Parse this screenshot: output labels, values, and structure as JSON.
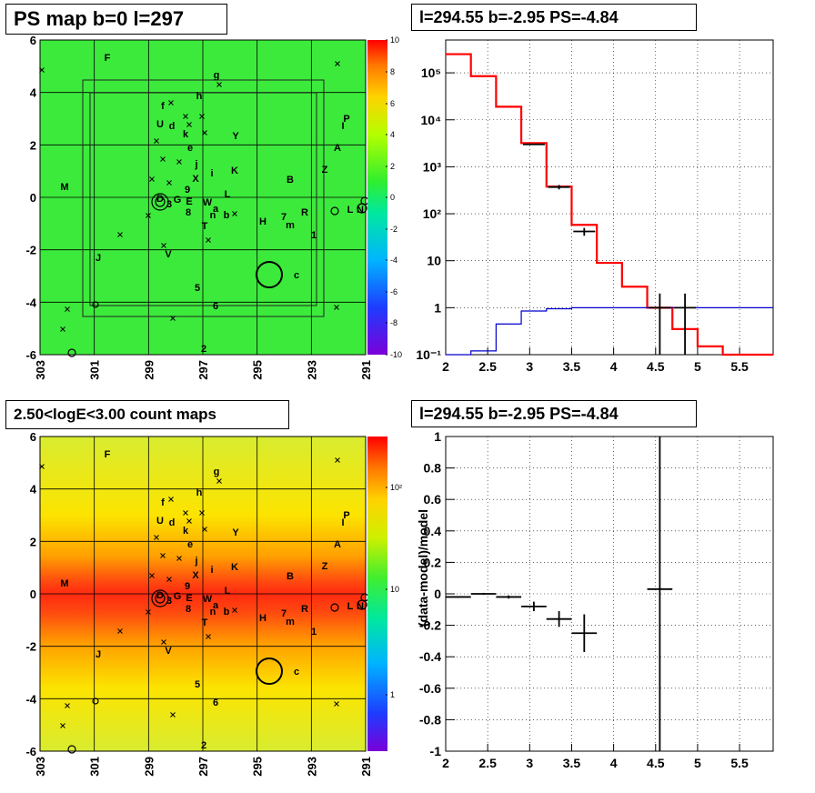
{
  "panels": {
    "map_top_title": "PS map b=0 l=297",
    "map_bottom_title": "2.50<logE<3.00 count maps",
    "spectrum_title": "l=294.55 b=-2.95 PS=-4.84",
    "residual_title": "l=294.55 b=-2.95 PS=-4.84",
    "residual_ylabel": "(data-model)/model"
  },
  "map_axes": {
    "x_ticks": [
      "303",
      "301",
      "299",
      "297",
      "295",
      "293",
      "291"
    ],
    "y_ticks": [
      "6",
      "4",
      "2",
      "0",
      "-2",
      "-4",
      "-6"
    ],
    "top_colorbar_ticks": [
      "10",
      "8",
      "6",
      "4",
      "2",
      "0",
      "-2",
      "-4",
      "-6",
      "-8",
      "-10"
    ],
    "bottom_colorbar_ticks": [
      "10²",
      "10",
      "1"
    ]
  },
  "source_labels": [
    "F",
    "g",
    "h",
    "f",
    "U",
    "d",
    "k",
    "e",
    "Y",
    "P",
    "I",
    "A",
    "j",
    "i",
    "K",
    "X",
    "Z",
    "B",
    "M",
    "9",
    "D",
    "3",
    "G",
    "E",
    "8",
    "W",
    "a",
    "n",
    "b",
    "T",
    "L",
    "H",
    "7",
    "m",
    "R",
    "1",
    "L",
    "N",
    "J",
    "V",
    "c",
    "5",
    "6",
    "2"
  ],
  "chart_data": [
    {
      "type": "line",
      "title": "l=294.55 b=-2.95 PS=-4.84",
      "xlabel": "",
      "ylabel": "",
      "log_y": true,
      "xlim": [
        2,
        5.9
      ],
      "ylim": [
        0.1,
        500000
      ],
      "x_ticks": [
        "2",
        "2.5",
        "3",
        "3.5",
        "4",
        "4.5",
        "5",
        "5.5"
      ],
      "y_ticks": [
        "10⁻¹",
        "1",
        "10",
        "10²",
        "10³",
        "10⁴",
        "10⁵"
      ],
      "grid": true,
      "bin_edges": [
        2.0,
        2.3,
        2.6,
        2.9,
        3.2,
        3.5,
        3.8,
        4.1,
        4.4,
        4.7,
        5.0,
        5.3,
        5.6,
        5.9
      ],
      "series": [
        {
          "color": "#ff0000",
          "values": [
            250000,
            85000,
            19000,
            3200,
            380,
            58,
            9,
            2.8,
            1.0,
            0.35,
            0.15,
            0.1,
            0.1
          ]
        },
        {
          "color": "#0000cc",
          "values": [
            0.1,
            0.12,
            0.45,
            0.85,
            0.95,
            1.0,
            1.0,
            1.0,
            1.0,
            1.0,
            1.0,
            1.0,
            1.0
          ]
        }
      ],
      "data_points": [
        {
          "x": 3.05,
          "y": 3000,
          "ylo": 3000,
          "yhi": 3000
        },
        {
          "x": 3.35,
          "y": 370,
          "ylo": 330,
          "yhi": 410
        },
        {
          "x": 3.65,
          "y": 42,
          "ylo": 34,
          "yhi": 50
        },
        {
          "x": 4.55,
          "y": 1.0,
          "ylo": 0.1,
          "yhi": 2.0
        },
        {
          "x": 4.85,
          "y": 1.0,
          "ylo": 0.1,
          "yhi": 2.0
        }
      ],
      "data_color": "#000000"
    },
    {
      "type": "scatter",
      "title": "l=294.55 b=-2.95 PS=-4.84",
      "xlabel": "",
      "ylabel": "(data-model)/model",
      "xlim": [
        2,
        5.9
      ],
      "ylim": [
        -1,
        1
      ],
      "x_ticks": [
        "2",
        "2.5",
        "3",
        "3.5",
        "4",
        "4.5",
        "5",
        "5.5"
      ],
      "y_ticks": [
        "-1",
        "-0.8",
        "-0.6",
        "-0.4",
        "-0.2",
        "0",
        "0.2",
        "0.4",
        "0.6",
        "0.8",
        "1"
      ],
      "grid": true,
      "points": [
        {
          "x": 2.15,
          "xerr": 0.15,
          "y": -0.02,
          "yerr": 0.005
        },
        {
          "x": 2.45,
          "xerr": 0.15,
          "y": 0.0,
          "yerr": 0.006
        },
        {
          "x": 2.75,
          "xerr": 0.15,
          "y": -0.02,
          "yerr": 0.01
        },
        {
          "x": 3.05,
          "xerr": 0.15,
          "y": -0.08,
          "yerr": 0.03
        },
        {
          "x": 3.35,
          "xerr": 0.15,
          "y": -0.16,
          "yerr": 0.05
        },
        {
          "x": 3.65,
          "xerr": 0.15,
          "y": -0.25,
          "yerr": 0.12
        },
        {
          "x": 4.55,
          "xerr": 0.15,
          "y": 0.03,
          "yerr": 1.2
        }
      ]
    }
  ]
}
